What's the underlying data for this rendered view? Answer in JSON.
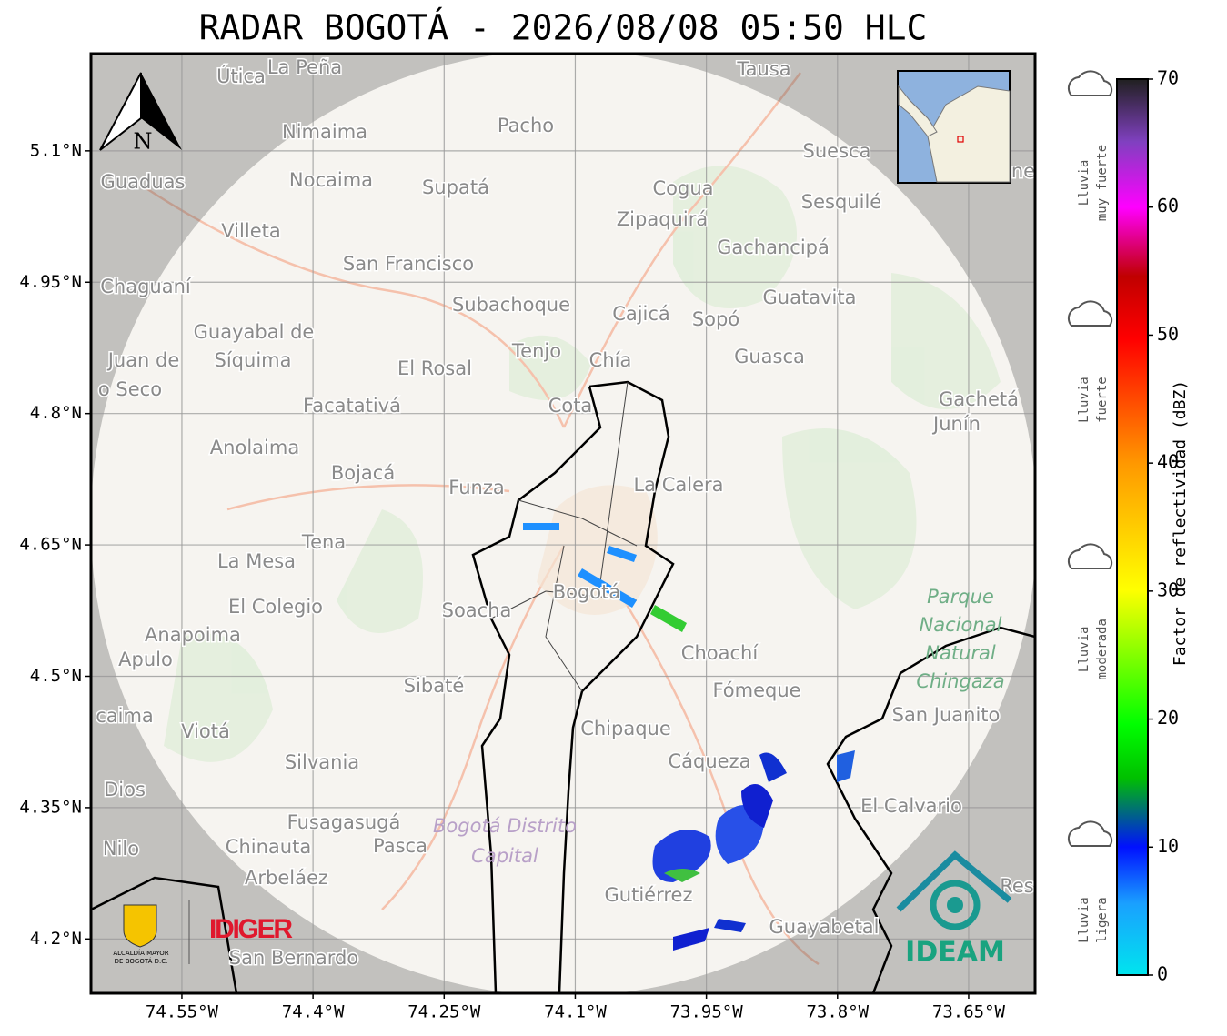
{
  "title": "RADAR BOGOTÁ - 2026/08/08 05:50 HLC",
  "map": {
    "xlim": [
      -74.654,
      -73.574
    ],
    "ylim": [
      4.138,
      5.211
    ],
    "xticks": [
      {
        "value": -74.55,
        "label": "74.55°W"
      },
      {
        "value": -74.4,
        "label": "74.4°W"
      },
      {
        "value": -74.25,
        "label": "74.25°W"
      },
      {
        "value": -74.1,
        "label": "74.1°W"
      },
      {
        "value": -73.95,
        "label": "73.95°W"
      },
      {
        "value": -73.8,
        "label": "73.8°W"
      },
      {
        "value": -73.65,
        "label": "73.65°W"
      }
    ],
    "yticks": [
      {
        "value": 5.1,
        "label": "5.1°N"
      },
      {
        "value": 4.95,
        "label": "4.95°N"
      },
      {
        "value": 4.8,
        "label": "4.8°N"
      },
      {
        "value": 4.65,
        "label": "4.65°N"
      },
      {
        "value": 4.5,
        "label": "4.5°N"
      },
      {
        "value": 4.35,
        "label": "4.35°N"
      },
      {
        "value": 4.2,
        "label": "4.2°N"
      }
    ],
    "grid": true,
    "north_label": "N",
    "places": [
      "Útica",
      "La Peña",
      "Tausa",
      "Pacho",
      "Nimaima",
      "Suesca",
      "Guaduas",
      "Nocaima",
      "Supatá",
      "Cogua",
      "Sesquilé",
      "Zipaquirá",
      "Villeta",
      "Gachancipá",
      "San Francisco",
      "Chaguaní",
      "Guatavita",
      "Subachoque",
      "Cajicá",
      "Sopó",
      "Guayabal de",
      "Tenjo",
      "Chía",
      "Guasca",
      "Juan de",
      "Síquima",
      "El Rosal",
      "o Seco",
      "Facatativá",
      "Cota",
      "Gachetá",
      "Junín",
      "Anolaima",
      "Bojacá",
      "Funza",
      "La Calera",
      "Tena",
      "La Mesa",
      "Soacha",
      "Bogotá",
      "El Colegio",
      "Anapoima",
      "Apulo",
      "Choachí",
      "Sibaté",
      "Fómeque",
      "San Juanito",
      "caima",
      "Viotá",
      "Chipaque",
      "Silvania",
      "Cáqueza",
      "Dios",
      "El Calvario",
      "Fusagasugá",
      "Chinauta",
      "Pasca",
      "Nilo",
      "Arbeláez",
      "Gutiérrez",
      "Guayabetal",
      "San Bernardo",
      "Res",
      "ne"
    ],
    "park_label": [
      "Parque",
      "Nacional",
      "Natural",
      "Chingaza"
    ],
    "district_label": [
      "Bogotá Distrito",
      "Capital"
    ]
  },
  "colorbar": {
    "label": "Factor de reflectividad (dBZ)",
    "lim": [
      0,
      70
    ],
    "ticks": [
      0,
      10,
      20,
      30,
      40,
      50,
      60,
      70
    ]
  },
  "rain_classes": [
    [
      "Lluvia",
      "muy fuerte"
    ],
    [
      "Lluvia",
      "fuerte"
    ],
    [
      "Lluvia",
      "moderada"
    ],
    [
      "Lluvia",
      "ligera"
    ]
  ],
  "logos": {
    "alcaldia": [
      "ALCALDÍA MAYOR",
      "DE BOGOTÁ D.C."
    ],
    "idiger": "IDIGER",
    "ideam": "IDEAM"
  }
}
